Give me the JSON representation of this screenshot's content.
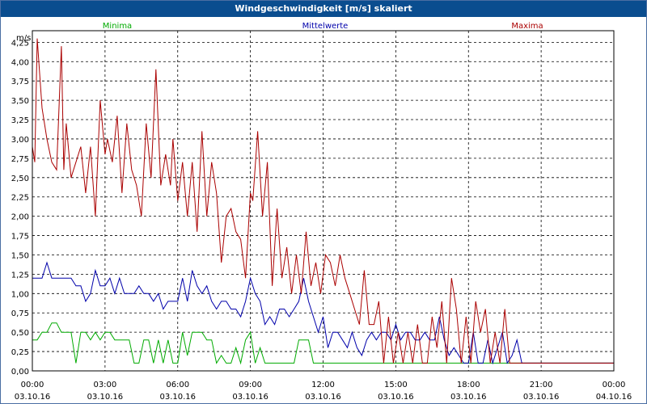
{
  "window": {
    "title": "Windgeschwindigkeit [m/s] skaliert"
  },
  "colors": {
    "titlebar": "#0a4d8f",
    "minima": "#00aa00",
    "mittel": "#0000aa",
    "maxima": "#aa0000",
    "grid": "#000000"
  },
  "chart_data": {
    "type": "line",
    "title": "Windgeschwindigkeit [m/s] skaliert",
    "ylabel": "m/s",
    "xlabel": "",
    "ylim": [
      0,
      4.4
    ],
    "xlim": [
      0,
      24
    ],
    "grid": true,
    "legend_position": "top",
    "y_ticks": [
      "0,00",
      "0,25",
      "0,50",
      "0,75",
      "1,00",
      "1,25",
      "1,50",
      "1,75",
      "2,00",
      "2,25",
      "2,50",
      "2,75",
      "3,00",
      "3,25",
      "3,50",
      "3,75",
      "4,00",
      "4,25"
    ],
    "x_ticks": [
      {
        "time": "00:00",
        "date": "03.10.16"
      },
      {
        "time": "03:00",
        "date": "03.10.16"
      },
      {
        "time": "06:00",
        "date": "03.10.16"
      },
      {
        "time": "09:00",
        "date": "03.10.16"
      },
      {
        "time": "12:00",
        "date": "03.10.16"
      },
      {
        "time": "15:00",
        "date": "03.10.16"
      },
      {
        "time": "18:00",
        "date": "03.10.16"
      },
      {
        "time": "21:00",
        "date": "03.10.16"
      },
      {
        "time": "00:00",
        "date": "04.10.16"
      }
    ],
    "series": [
      {
        "name": "Minima",
        "color": "#00aa00",
        "x": [
          0,
          0.2,
          0.4,
          0.6,
          0.8,
          1.0,
          1.2,
          1.4,
          1.6,
          1.8,
          2.0,
          2.2,
          2.4,
          2.6,
          2.8,
          3.0,
          3.2,
          3.4,
          3.6,
          3.8,
          4.0,
          4.2,
          4.4,
          4.6,
          4.8,
          5.0,
          5.2,
          5.4,
          5.6,
          5.8,
          6.0,
          6.2,
          6.4,
          6.6,
          6.8,
          7.0,
          7.2,
          7.4,
          7.6,
          7.8,
          8.0,
          8.2,
          8.4,
          8.6,
          8.8,
          9.0,
          9.2,
          9.4,
          9.6,
          9.8,
          10.0,
          10.2,
          10.4,
          10.6,
          10.8,
          11.0,
          11.2,
          11.4,
          11.6,
          11.8,
          12.0,
          15.0,
          18.0,
          19.0,
          20.0,
          21.0,
          24.0
        ],
        "values": [
          0.4,
          0.4,
          0.5,
          0.5,
          0.62,
          0.62,
          0.5,
          0.5,
          0.5,
          0.1,
          0.5,
          0.5,
          0.4,
          0.5,
          0.4,
          0.5,
          0.5,
          0.4,
          0.4,
          0.4,
          0.4,
          0.1,
          0.1,
          0.4,
          0.4,
          0.1,
          0.4,
          0.1,
          0.4,
          0.1,
          0.1,
          0.5,
          0.2,
          0.5,
          0.5,
          0.5,
          0.4,
          0.4,
          0.1,
          0.2,
          0.1,
          0.1,
          0.3,
          0.1,
          0.4,
          0.5,
          0.1,
          0.3,
          0.1,
          0.1,
          0.1,
          0.1,
          0.1,
          0.1,
          0.1,
          0.4,
          0.4,
          0.4,
          0.1,
          0.1,
          0.1,
          0.1,
          0.1,
          0.1,
          0.1,
          0.1,
          0.1
        ]
      },
      {
        "name": "Mittelwerte",
        "color": "#0000aa",
        "x": [
          0,
          0.2,
          0.4,
          0.6,
          0.8,
          1.0,
          1.2,
          1.4,
          1.6,
          1.8,
          2.0,
          2.2,
          2.4,
          2.6,
          2.8,
          3.0,
          3.2,
          3.4,
          3.6,
          3.8,
          4.0,
          4.2,
          4.4,
          4.6,
          4.8,
          5.0,
          5.2,
          5.4,
          5.6,
          5.8,
          6.0,
          6.2,
          6.4,
          6.6,
          6.8,
          7.0,
          7.2,
          7.4,
          7.6,
          7.8,
          8.0,
          8.2,
          8.4,
          8.6,
          8.8,
          9.0,
          9.2,
          9.4,
          9.6,
          9.8,
          10.0,
          10.2,
          10.4,
          10.6,
          10.8,
          11.0,
          11.2,
          11.4,
          11.6,
          11.8,
          12.0,
          12.2,
          12.4,
          12.6,
          12.8,
          13.0,
          13.2,
          13.4,
          13.6,
          13.8,
          14.0,
          14.2,
          14.4,
          14.6,
          14.8,
          15.0,
          15.2,
          15.4,
          15.6,
          15.8,
          16.0,
          16.2,
          16.4,
          16.6,
          16.8,
          17.0,
          17.2,
          17.4,
          17.6,
          17.8,
          18.0,
          18.2,
          18.4,
          18.6,
          18.8,
          19.0,
          19.2,
          19.4,
          19.6,
          19.8,
          20.0,
          20.2,
          20.4,
          21.0,
          24.0
        ],
        "values": [
          1.2,
          1.2,
          1.2,
          1.4,
          1.2,
          1.2,
          1.2,
          1.2,
          1.2,
          1.1,
          1.1,
          0.9,
          1.0,
          1.3,
          1.1,
          1.1,
          1.2,
          1.0,
          1.2,
          1.0,
          1.0,
          1.0,
          1.1,
          1.0,
          1.0,
          0.9,
          1.0,
          0.8,
          0.9,
          0.9,
          0.9,
          1.2,
          0.9,
          1.3,
          1.1,
          1.0,
          1.1,
          0.9,
          0.8,
          0.9,
          0.9,
          0.8,
          0.8,
          0.7,
          0.9,
          1.2,
          1.0,
          0.9,
          0.6,
          0.7,
          0.6,
          0.8,
          0.8,
          0.7,
          0.8,
          0.9,
          1.2,
          0.9,
          0.7,
          0.5,
          0.7,
          0.3,
          0.5,
          0.5,
          0.4,
          0.3,
          0.5,
          0.3,
          0.2,
          0.4,
          0.5,
          0.4,
          0.5,
          0.5,
          0.4,
          0.6,
          0.4,
          0.5,
          0.5,
          0.4,
          0.4,
          0.5,
          0.4,
          0.4,
          0.7,
          0.4,
          0.2,
          0.3,
          0.2,
          0.1,
          0.1,
          0.5,
          0.1,
          0.1,
          0.4,
          0.1,
          0.3,
          0.5,
          0.1,
          0.2,
          0.4,
          0.1,
          0.1,
          0.1,
          0.1
        ]
      },
      {
        "name": "Maxima",
        "color": "#aa0000",
        "x": [
          0,
          0.1,
          0.2,
          0.4,
          0.6,
          0.8,
          1.0,
          1.2,
          1.3,
          1.4,
          1.6,
          1.8,
          2.0,
          2.2,
          2.4,
          2.6,
          2.8,
          3.0,
          3.1,
          3.3,
          3.5,
          3.7,
          3.9,
          4.1,
          4.3,
          4.5,
          4.7,
          4.9,
          5.1,
          5.3,
          5.5,
          5.7,
          5.8,
          6.0,
          6.2,
          6.4,
          6.6,
          6.8,
          7.0,
          7.2,
          7.4,
          7.6,
          7.8,
          8.0,
          8.2,
          8.4,
          8.6,
          8.8,
          9.0,
          9.1,
          9.3,
          9.5,
          9.7,
          9.9,
          10.1,
          10.3,
          10.5,
          10.7,
          10.9,
          11.1,
          11.3,
          11.5,
          11.7,
          11.9,
          12.1,
          12.3,
          12.5,
          12.7,
          12.9,
          13.1,
          13.3,
          13.5,
          13.7,
          13.9,
          14.1,
          14.3,
          14.5,
          14.7,
          14.9,
          15.1,
          15.3,
          15.5,
          15.7,
          15.9,
          16.1,
          16.3,
          16.5,
          16.7,
          16.9,
          17.1,
          17.3,
          17.5,
          17.7,
          17.9,
          18.1,
          18.3,
          18.5,
          18.7,
          18.9,
          19.1,
          19.3,
          19.5,
          19.7,
          19.9,
          20.1,
          20.3,
          20.4,
          21.0,
          24.0
        ],
        "values": [
          2.9,
          2.7,
          4.3,
          3.4,
          3.0,
          2.7,
          2.6,
          4.2,
          2.6,
          3.2,
          2.5,
          2.7,
          2.9,
          2.3,
          2.9,
          2.0,
          3.5,
          2.8,
          3.0,
          2.7,
          3.3,
          2.3,
          3.2,
          2.6,
          2.4,
          2.0,
          3.2,
          2.5,
          3.9,
          2.4,
          2.8,
          2.4,
          3.0,
          2.2,
          2.7,
          2.0,
          2.7,
          1.8,
          3.1,
          2.0,
          2.7,
          2.3,
          1.4,
          2.0,
          2.1,
          1.8,
          1.7,
          1.2,
          2.3,
          2.2,
          3.1,
          2.0,
          2.7,
          1.1,
          2.1,
          1.2,
          1.6,
          1.0,
          1.5,
          1.0,
          1.8,
          1.1,
          1.4,
          1.0,
          1.5,
          1.4,
          1.1,
          1.5,
          1.2,
          1.0,
          0.8,
          0.6,
          1.3,
          0.6,
          0.6,
          0.9,
          0.1,
          0.7,
          0.1,
          0.5,
          0.1,
          0.5,
          0.1,
          0.6,
          0.1,
          0.1,
          0.7,
          0.3,
          0.9,
          0.1,
          1.2,
          0.8,
          0.1,
          0.7,
          0.1,
          0.9,
          0.5,
          0.8,
          0.1,
          0.5,
          0.1,
          0.8,
          0.1,
          0.1,
          0.1,
          0.1,
          0.1,
          0.1,
          0.1
        ]
      }
    ]
  }
}
